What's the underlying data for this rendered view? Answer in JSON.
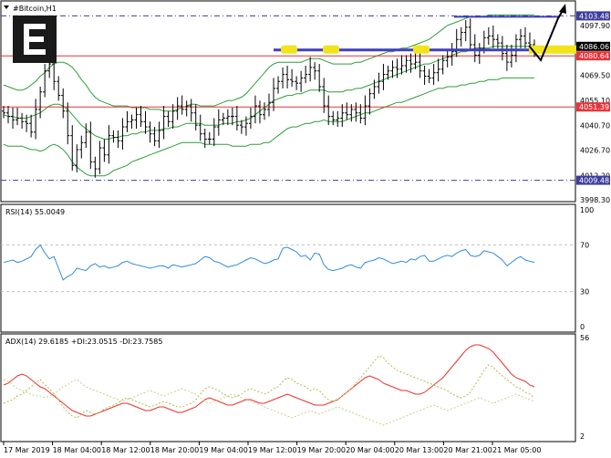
{
  "chart_data": [
    {
      "type": "candlestick",
      "title": "#Bitcoin,H1",
      "ylim": [
        3998.3,
        4111.0
      ],
      "y_ticks": [
        4097.9,
        4086.06,
        4069.5,
        4055.1,
        4040.7,
        4026.7,
        4012.2,
        3998.3
      ],
      "price_tags": [
        {
          "value": "4103.48",
          "color": "#3d3d9e"
        },
        {
          "value": "4086.06",
          "color": "#000000"
        },
        {
          "value": "4080.64",
          "color": "#e8333a"
        },
        {
          "value": "4051.39",
          "color": "#e8333a"
        },
        {
          "value": "4009.48",
          "color": "#3d3d9e"
        }
      ],
      "horizontal_levels": [
        {
          "value": 4080.64,
          "color": "#e8333a",
          "style": "solid"
        },
        {
          "value": 4051.39,
          "color": "#e8333a",
          "style": "solid"
        },
        {
          "value": 4103.48,
          "color": "#3d3d9e",
          "style": "dash-dot"
        },
        {
          "value": 4009.48,
          "color": "#3d3d9e",
          "style": "dash-dot"
        }
      ],
      "indicator": "Bollinger Bands",
      "close": [
        4048,
        4046,
        4044,
        4045,
        4043,
        4042,
        4037,
        4050,
        4060,
        4072,
        4076,
        4066,
        4058,
        4049,
        4035,
        4018,
        4027,
        4031,
        4037,
        4020,
        4016,
        4028,
        4024,
        4035,
        4034,
        4032,
        4040,
        4043,
        4044,
        4047,
        4043,
        4040,
        4036,
        4032,
        4038,
        4046,
        4043,
        4049,
        4052,
        4050,
        4052,
        4048,
        4041,
        4036,
        4033,
        4033,
        4040,
        4044,
        4045,
        4046,
        4046,
        4041,
        4040,
        4042,
        4046,
        4052,
        4047,
        4050,
        4054,
        4062,
        4066,
        4070,
        4067,
        4066,
        4065,
        4068,
        4070,
        4074,
        4072,
        4063,
        4052,
        4046,
        4044,
        4045,
        4048,
        4047,
        4050,
        4048,
        4045,
        4052,
        4059,
        4063,
        4066,
        4070,
        4072,
        4074,
        4073,
        4075,
        4078,
        4076,
        4077,
        4072,
        4069,
        4068,
        4071,
        4073,
        4078,
        4080,
        4083,
        4090,
        4094,
        4097,
        4087,
        4081,
        4085,
        4091,
        4092,
        4090,
        4088,
        4082,
        4077,
        4081,
        4090,
        4092,
        4088,
        4087,
        4085
      ],
      "bb_upper": [
        4064,
        4063,
        4062,
        4061,
        4061,
        4062,
        4064,
        4066,
        4069,
        4071,
        4074,
        4076,
        4077,
        4077,
        4076,
        4074,
        4071,
        4067,
        4064,
        4060,
        4057,
        4055,
        4054,
        4053,
        4052,
        4052,
        4052,
        4052,
        4051,
        4051,
        4051,
        4051,
        4050,
        4050,
        4050,
        4049,
        4049,
        4049,
        4050,
        4051,
        4052,
        4053,
        4053,
        4052,
        4052,
        4052,
        4052,
        4053,
        4054,
        4055,
        4055,
        4056,
        4057,
        4059,
        4062,
        4065,
        4068,
        4071,
        4074,
        4076,
        4077,
        4077,
        4077,
        4077,
        4077,
        4077,
        4078,
        4079,
        4079,
        4079,
        4078,
        4077,
        4076,
        4076,
        4076,
        4076,
        4076,
        4077,
        4077,
        4078,
        4079,
        4080,
        4081,
        4082,
        4083,
        4083,
        4084,
        4085,
        4085,
        4086,
        4087,
        4088,
        4089,
        4090,
        4092,
        4094,
        4096,
        4098,
        4099,
        4100,
        4101,
        4102,
        4103,
        4103,
        4103,
        4103,
        4104,
        4104,
        4104,
        4104,
        4104,
        4104,
        4104,
        4104,
        4104,
        4104,
        4104
      ],
      "bb_middle": [
        4047,
        4046,
        4046,
        4045,
        4045,
        4045,
        4046,
        4047,
        4048,
        4050,
        4052,
        4053,
        4053,
        4052,
        4050,
        4047,
        4044,
        4041,
        4039,
        4037,
        4035,
        4034,
        4033,
        4033,
        4034,
        4034,
        4035,
        4035,
        4036,
        4036,
        4037,
        4037,
        4038,
        4038,
        4038,
        4039,
        4039,
        4040,
        4040,
        4041,
        4042,
        4042,
        4042,
        4042,
        4041,
        4041,
        4041,
        4041,
        4042,
        4042,
        4042,
        4043,
        4043,
        4044,
        4045,
        4047,
        4049,
        4051,
        4053,
        4055,
        4056,
        4057,
        4058,
        4058,
        4059,
        4059,
        4060,
        4061,
        4061,
        4061,
        4061,
        4060,
        4060,
        4060,
        4060,
        4061,
        4061,
        4062,
        4062,
        4063,
        4064,
        4065,
        4066,
        4067,
        4068,
        4069,
        4070,
        4071,
        4072,
        4073,
        4074,
        4075,
        4076,
        4076,
        4077,
        4078,
        4079,
        4080,
        4081,
        4082,
        4083,
        4083,
        4084,
        4085,
        4085,
        4085,
        4085,
        4086,
        4086,
        4086,
        4086,
        4086,
        4086,
        4086,
        4086,
        4086,
        4086
      ],
      "bb_lower": [
        4030,
        4029,
        4029,
        4029,
        4029,
        4028,
        4027,
        4027,
        4026,
        4027,
        4029,
        4030,
        4029,
        4027,
        4024,
        4020,
        4017,
        4015,
        4013,
        4012,
        4012,
        4012,
        4012,
        4013,
        4015,
        4016,
        4017,
        4018,
        4020,
        4021,
        4022,
        4023,
        4024,
        4025,
        4026,
        4027,
        4028,
        4029,
        4030,
        4031,
        4031,
        4031,
        4031,
        4031,
        4030,
        4030,
        4030,
        4030,
        4030,
        4030,
        4029,
        4029,
        4029,
        4029,
        4030,
        4030,
        4030,
        4031,
        4031,
        4033,
        4035,
        4037,
        4039,
        4040,
        4040,
        4041,
        4042,
        4042,
        4043,
        4043,
        4044,
        4043,
        4043,
        4043,
        4043,
        4044,
        4045,
        4046,
        4047,
        4048,
        4048,
        4049,
        4050,
        4051,
        4052,
        4053,
        4054,
        4054,
        4055,
        4056,
        4057,
        4058,
        4059,
        4060,
        4061,
        4062,
        4062,
        4063,
        4063,
        4063,
        4064,
        4064,
        4065,
        4065,
        4066,
        4066,
        4067,
        4067,
        4067,
        4068,
        4068,
        4068,
        4068,
        4068,
        4068,
        4068,
        4068
      ]
    },
    {
      "type": "line",
      "title": "RSI(14) 55.0049",
      "ylim": [
        0,
        100
      ],
      "y_ticks": [
        100,
        70,
        30,
        0
      ],
      "levels": [
        70,
        30
      ],
      "series": [
        {
          "color": "#2e8bdc",
          "values": [
            55,
            56,
            57,
            55,
            56,
            58,
            60,
            66,
            70,
            63,
            58,
            60,
            50,
            40,
            43,
            45,
            50,
            49,
            48,
            52,
            54,
            51,
            52,
            50,
            51,
            52,
            55,
            56,
            54,
            53,
            52,
            51,
            50,
            51,
            52,
            52,
            50,
            53,
            52,
            51,
            52,
            53,
            54,
            57,
            60,
            59,
            56,
            55,
            53,
            51,
            52,
            53,
            55,
            57,
            59,
            58,
            56,
            54,
            55,
            57,
            58,
            67,
            68,
            66,
            64,
            60,
            61,
            57,
            63,
            62,
            53,
            49,
            48,
            49,
            50,
            52,
            53,
            51,
            50,
            55,
            56,
            57,
            59,
            58,
            56,
            54,
            55,
            56,
            55,
            58,
            57,
            60,
            61,
            56,
            56,
            58,
            60,
            61,
            60,
            63,
            65,
            66,
            61,
            60,
            61,
            65,
            64,
            63,
            60,
            57,
            52,
            55,
            58,
            60,
            57,
            56,
            55
          ]
        }
      ]
    },
    {
      "type": "line",
      "title": "ADX(14) 29.6185 +DI:23.0515 -DI:23.7585",
      "ylim": [
        2,
        56
      ],
      "y_ticks": [
        56,
        2
      ],
      "series": [
        {
          "color": "#e8332c",
          "style": "solid",
          "values": [
            30,
            31,
            33,
            35,
            36,
            35,
            33,
            31,
            29,
            28,
            26,
            24,
            22,
            20,
            18,
            16,
            15,
            14,
            13,
            13,
            14,
            15,
            16,
            17,
            18,
            19,
            20,
            20,
            19,
            18,
            17,
            16,
            16,
            17,
            18,
            18,
            17,
            16,
            15,
            15,
            16,
            17,
            18,
            20,
            22,
            23,
            22,
            21,
            20,
            19,
            19,
            20,
            21,
            22,
            22,
            21,
            20,
            20,
            21,
            22,
            23,
            24,
            25,
            24,
            23,
            22,
            21,
            20,
            19,
            19,
            19,
            20,
            21,
            22,
            24,
            26,
            28,
            30,
            32,
            34,
            35,
            34,
            33,
            31,
            30,
            29,
            28,
            27,
            27,
            26,
            25,
            25,
            26,
            28,
            30,
            32,
            34,
            37,
            40,
            43,
            46,
            49,
            51,
            52,
            52,
            51,
            50,
            48,
            45,
            42,
            39,
            36,
            34,
            33,
            32,
            30,
            29
          ]
        },
        {
          "color": "#b8b84c",
          "style": "dashed",
          "values": [
            20,
            21,
            22,
            24,
            25,
            27,
            29,
            31,
            33,
            30,
            28,
            25,
            22,
            18,
            15,
            13,
            12,
            14,
            16,
            15,
            14,
            15,
            17,
            18,
            19,
            20,
            22,
            23,
            22,
            21,
            20,
            19,
            18,
            19,
            20,
            21,
            20,
            19,
            18,
            18,
            19,
            20,
            22,
            25,
            28,
            29,
            28,
            27,
            25,
            24,
            23,
            24,
            25,
            27,
            28,
            27,
            26,
            25,
            26,
            28,
            29,
            32,
            34,
            33,
            31,
            30,
            29,
            27,
            28,
            27,
            24,
            22,
            21,
            22,
            24,
            26,
            28,
            31,
            34,
            37,
            40,
            43,
            46,
            45,
            42,
            40,
            38,
            37,
            36,
            35,
            34,
            33,
            32,
            31,
            30,
            29,
            28,
            27,
            25,
            24,
            23,
            24,
            26,
            30,
            34,
            38,
            41,
            40,
            37,
            35,
            33,
            31,
            29,
            28,
            26,
            25,
            23
          ]
        },
        {
          "color": "#c8d08a",
          "style": "dashed",
          "values": [
            33,
            32,
            30,
            28,
            27,
            26,
            25,
            24,
            24,
            23,
            24,
            25,
            27,
            29,
            30,
            32,
            33,
            31,
            29,
            28,
            27,
            26,
            25,
            24,
            23,
            22,
            21,
            22,
            23,
            24,
            25,
            26,
            27,
            26,
            25,
            24,
            25,
            26,
            27,
            28,
            27,
            26,
            25,
            23,
            21,
            20,
            21,
            22,
            23,
            24,
            25,
            24,
            23,
            22,
            21,
            20,
            19,
            18,
            17,
            16,
            15,
            14,
            13,
            12,
            13,
            14,
            15,
            16,
            15,
            14,
            15,
            16,
            17,
            18,
            17,
            16,
            15,
            14,
            13,
            12,
            11,
            10,
            9,
            8,
            9,
            10,
            11,
            12,
            13,
            14,
            15,
            16,
            17,
            18,
            19,
            18,
            17,
            16,
            17,
            18,
            19,
            20,
            21,
            22,
            23,
            22,
            21,
            20,
            21,
            22,
            23,
            24,
            25,
            24,
            23,
            22,
            21
          ]
        }
      ]
    }
  ],
  "x_axis_labels": [
    "17 Mar 2019",
    "18 Mar 04:00",
    "18 Mar 12:00",
    "18 Mar 20:00",
    "19 Mar 04:00",
    "19 Mar 12:00",
    "19 Mar 20:00",
    "20 Mar 04:00",
    "20 Mar 13:00",
    "20 Mar 21:00",
    "21 Mar 05:00"
  ],
  "window_title": "#Bitcoin,H1",
  "logo_letter": "E"
}
